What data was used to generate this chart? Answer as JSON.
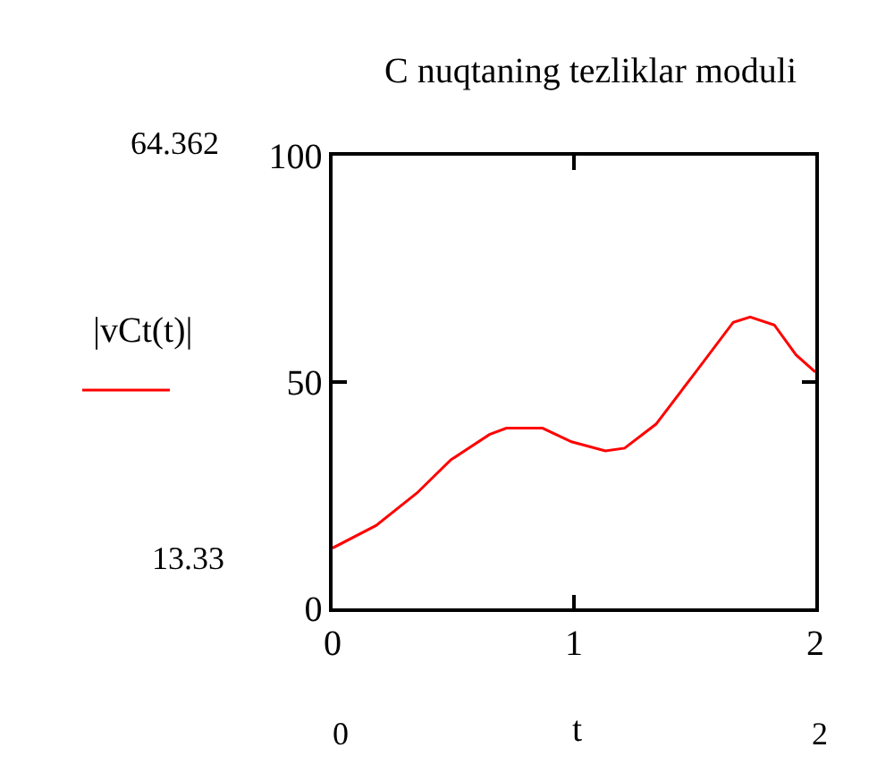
{
  "chart_data": {
    "type": "line",
    "title": "C nuqtaning tezliklar moduli",
    "xlabel": "t",
    "ylabel": "|vCt(t)|",
    "annotations": [
      "64.362",
      "13.33",
      "0",
      "2"
    ],
    "x": [
      0,
      0.18,
      0.35,
      0.49,
      0.65,
      0.72,
      0.87,
      0.99,
      1.13,
      1.21,
      1.34,
      1.51,
      1.66,
      1.73,
      1.83,
      1.92,
      2.0
    ],
    "series": [
      {
        "color": "#ff0000",
        "values": [
          13.33,
          18.3,
          25.5,
          32.8,
          38.4,
          39.8,
          39.8,
          36.8,
          34.8,
          35.4,
          40.7,
          52.6,
          63.2,
          64.362,
          62.6,
          56.0,
          52.2
        ]
      }
    ],
    "xlim": [
      0,
      2
    ],
    "xticks": [
      0,
      1,
      2
    ],
    "ylim": [
      0,
      100
    ],
    "yticks": [
      0,
      50,
      100
    ],
    "marker": "none",
    "line_style": "solid"
  }
}
